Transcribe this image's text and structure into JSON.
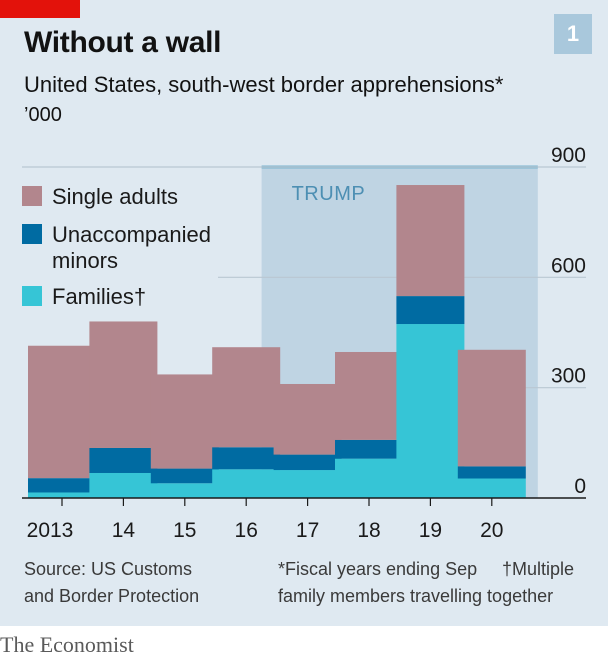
{
  "header": {
    "title": "Without a wall",
    "number": "1",
    "subtitle": "United States, south-west border apprehensions*",
    "unit": "’000"
  },
  "colors": {
    "accent_red": "#e3120b",
    "single_adults": "#b2868d",
    "unaccompanied_minors": "#006ba2",
    "families": "#36c5d6",
    "shade": "#bfd4e3",
    "shade_line": "#7ab3cf"
  },
  "chart_data": {
    "type": "bar",
    "stacked": true,
    "categories": [
      "2013",
      "14",
      "15",
      "16",
      "17",
      "18",
      "19",
      "20"
    ],
    "series": [
      {
        "name": "Families",
        "values": [
          15,
          68,
          40,
          78,
          76,
          107,
          473,
          53
        ]
      },
      {
        "name": "Unaccompanied minors",
        "values": [
          39,
          68,
          40,
          60,
          42,
          51,
          76,
          33
        ]
      },
      {
        "name": "Single adults",
        "values": [
          360,
          344,
          256,
          272,
          192,
          239,
          302,
          317
        ]
      }
    ],
    "ylim": [
      0,
      900
    ],
    "yticks": [
      0,
      300,
      600,
      900
    ],
    "yaxis_side": "right",
    "legend": [
      "Single adults",
      "Unaccompanied minors",
      "Families†"
    ],
    "legend_position": "top-left",
    "shaded_region": {
      "label": "TRUMP",
      "from": "17",
      "to": "20"
    }
  },
  "footer": {
    "source_line1": "Source: US Customs",
    "source_line2": "and Border Protection",
    "fiscal_note": "*Fiscal years ending Sep",
    "multiple_line1": "†Multiple",
    "multiple_line2": "family members travelling together",
    "brand": "The Economist"
  }
}
